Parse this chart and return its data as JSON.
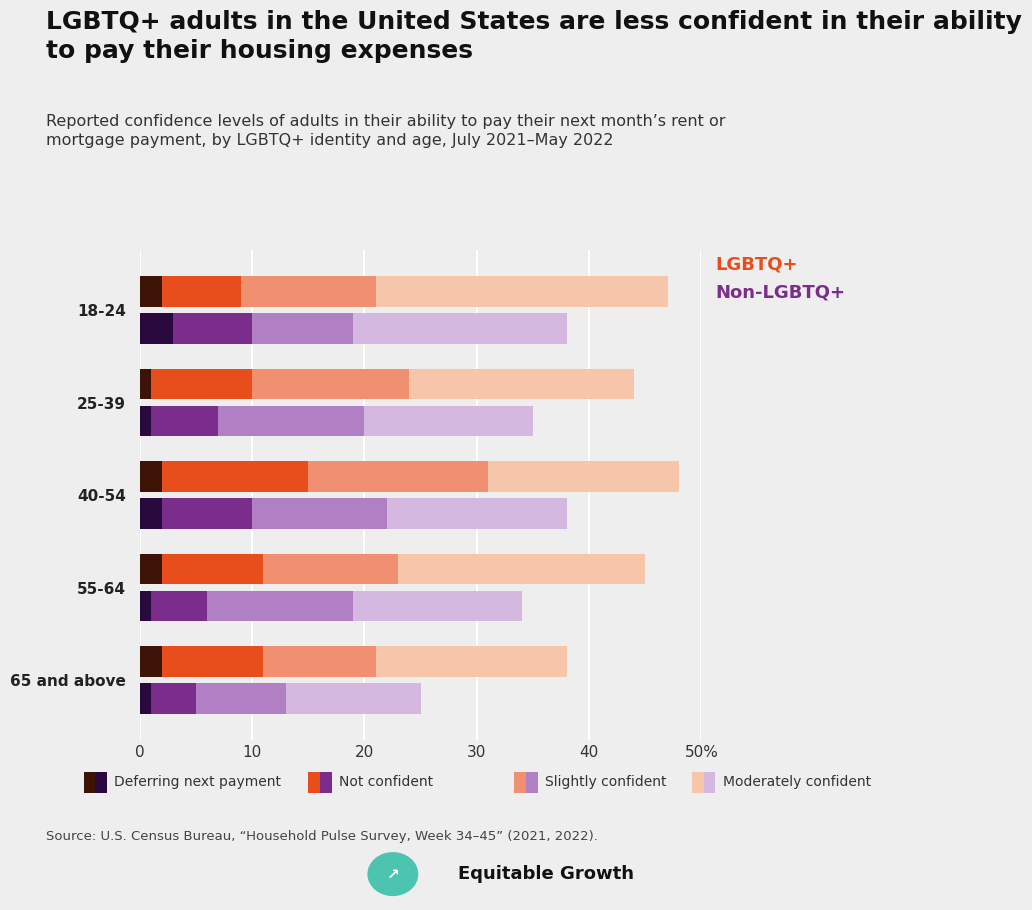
{
  "title": "LGBTQ+ adults in the United States are less confident in their ability\nto pay their housing expenses",
  "subtitle": "Reported confidence levels of adults in their ability to pay their next month’s rent or\nmortgage payment, by LGBTQ+ identity and age, July 2021–May 2022",
  "age_groups": [
    "18-24",
    "25-39",
    "40-54",
    "55-64",
    "65 and above"
  ],
  "categories": [
    "Deferring next payment",
    "Not confident",
    "Slightly confident",
    "Moderately confident"
  ],
  "lgbtq_colors": [
    "#3d1308",
    "#e84e1b",
    "#f09070",
    "#f7c5aa"
  ],
  "nonlgbtq_colors": [
    "#2a0a3e",
    "#7b2d8b",
    "#b07fc4",
    "#d4b8e0"
  ],
  "lgbtq_data": [
    [
      2,
      7,
      12,
      26
    ],
    [
      1,
      9,
      14,
      20
    ],
    [
      2,
      13,
      16,
      17
    ],
    [
      2,
      9,
      12,
      22
    ],
    [
      2,
      9,
      10,
      17
    ]
  ],
  "nonlgbtq_data": [
    [
      3,
      7,
      9,
      19
    ],
    [
      1,
      6,
      13,
      15
    ],
    [
      2,
      8,
      12,
      16
    ],
    [
      1,
      5,
      13,
      15
    ],
    [
      1,
      4,
      8,
      12
    ]
  ],
  "xlim": [
    0,
    50
  ],
  "xticks": [
    0,
    10,
    20,
    30,
    40,
    50
  ],
  "xticklabels": [
    "0",
    "10",
    "20",
    "30",
    "40",
    "50%"
  ],
  "source": "Source: U.S. Census Bureau, “Household Pulse Survey, Week 34–45” (2021, 2022).",
  "lgbtq_label": "LGBTQ+",
  "nonlgbtq_label": "Non-LGBTQ+",
  "lgbtq_label_color": "#e84e1b",
  "nonlgbtq_label_color": "#7b2d8b",
  "background_color": "#eeeeee",
  "bar_height": 0.33,
  "title_fontsize": 18,
  "subtitle_fontsize": 11.5,
  "tick_fontsize": 11,
  "label_fontsize": 13
}
